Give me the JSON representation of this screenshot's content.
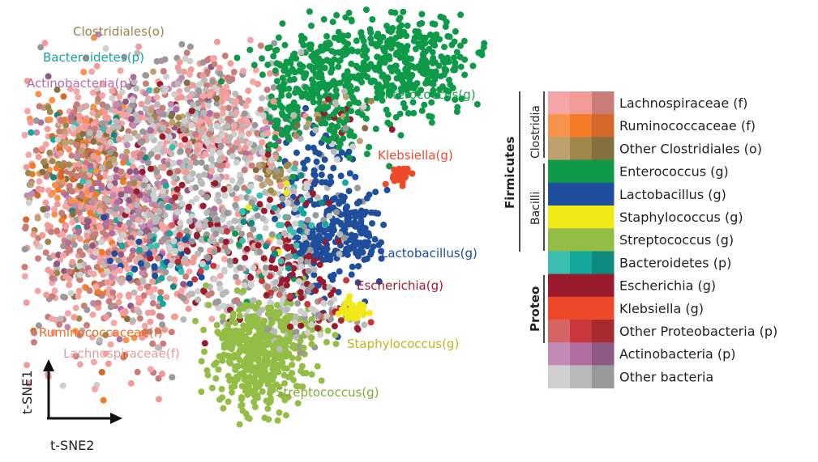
{
  "chart_data": {
    "type": "scatter",
    "xlabel": "t-SNE2",
    "ylabel": "t-SNE1",
    "cluster_labels": [
      {
        "text": "Clostridiales(o)",
        "color": "#9a8348"
      },
      {
        "text": "Bacteroidetes(p)",
        "color": "#17a39a"
      },
      {
        "text": "Actinobacteria(p)",
        "color": "#b86aa6"
      },
      {
        "text": "Enterococcus(g)",
        "color": "#12a04a"
      },
      {
        "text": "Klebsiella(g)",
        "color": "#ef4a2a"
      },
      {
        "text": "Lactobacillus(g)",
        "color": "#1a4da2"
      },
      {
        "text": "Escherichia(g)",
        "color": "#a31a2e"
      },
      {
        "text": "Staphylococcus(g)",
        "color": "#c4b21e"
      },
      {
        "text": "Streptococcus(g)",
        "color": "#7fac35"
      },
      {
        "text": "Ruminococcaceae(f)",
        "color": "#f26a22"
      },
      {
        "text": "Lachnospiraceae(f)",
        "color": "#e99a98"
      }
    ],
    "legend": {
      "groups": [
        {
          "label": "Firmicutes",
          "bold": true
        },
        {
          "label": "Clostridia",
          "bold": false
        },
        {
          "label": "Bacilli",
          "bold": false
        },
        {
          "label": "Proteo",
          "bold": true
        }
      ],
      "entries": [
        {
          "label": "Lachnospiraceae (f)",
          "colors": [
            "#f4a6a6",
            "#f19a96",
            "#c97d78"
          ]
        },
        {
          "label": "Ruminococcaceae (f)",
          "colors": [
            "#f7924a",
            "#f57a26",
            "#d4672a"
          ]
        },
        {
          "label": "Other Clostridiales (o)",
          "colors": [
            "#bea06f",
            "#a1874a",
            "#84703f"
          ]
        },
        {
          "label": "Enterococcus (g)",
          "colors": [
            "#0f9a4a",
            "#0f9a4a",
            "#0f9a4a"
          ]
        },
        {
          "label": "Lactobacillus (g)",
          "colors": [
            "#1e4e9c",
            "#1e4e9c",
            "#1e4e9c"
          ]
        },
        {
          "label": "Staphylococcus (g)",
          "colors": [
            "#f2e918",
            "#f2e918",
            "#f2e918"
          ]
        },
        {
          "label": "Streptococcus (g)",
          "colors": [
            "#93bd44",
            "#93bd44",
            "#93bd44"
          ]
        },
        {
          "label": "Bacteroidetes (p)",
          "colors": [
            "#3bbdb0",
            "#12a89c",
            "#0f8a80"
          ]
        },
        {
          "label": "Escherichia (g)",
          "colors": [
            "#9a1a2e",
            "#9a1a2e",
            "#9a1a2e"
          ]
        },
        {
          "label": "Klebsiella (g)",
          "colors": [
            "#ee4a2a",
            "#ee4a2a",
            "#ee4a2a"
          ]
        },
        {
          "label": "Other Proteobacteria (p)",
          "colors": [
            "#d46564",
            "#c9363b",
            "#a72a2e"
          ]
        },
        {
          "label": "Actinobacteria (p)",
          "colors": [
            "#c189b4",
            "#b06d9f",
            "#8e5a84"
          ]
        },
        {
          "label": "Other bacteria",
          "colors": [
            "#cfcfcf",
            "#b9b9b9",
            "#999999"
          ]
        }
      ]
    }
  }
}
